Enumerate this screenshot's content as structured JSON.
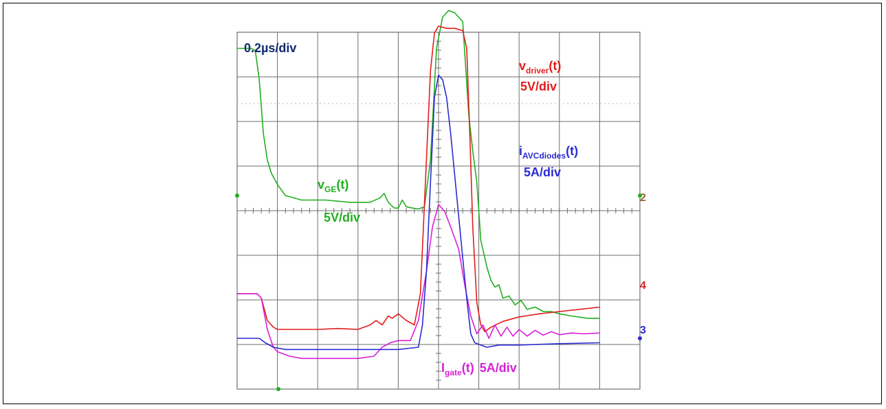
{
  "chart_data": {
    "type": "line",
    "grid": true,
    "x_divisions": 10,
    "y_divisions": 8,
    "timebase_label": "0.2µs/div",
    "colors": {
      "green": "#1faf1f",
      "red": "#e41b1b",
      "blue": "#2a2ad4",
      "magenta": "#d81ed8",
      "navy": "#102a6e",
      "grid": "#6e6e6e"
    },
    "channel_markers": {
      "ch2": "2",
      "ch4": "4",
      "ch3": "3"
    },
    "annotations": {
      "vdriver": {
        "main": "v",
        "sub": "driver",
        "tail": "(t)",
        "scale": "5V/div"
      },
      "iavc": {
        "main": "i",
        "sub": "AVCdiodes",
        "tail": "(t)",
        "scale": "5A/div"
      },
      "vge": {
        "main": "v",
        "sub": "GE",
        "tail": "(t)",
        "scale": "5V/div"
      },
      "igate": {
        "main": "I",
        "sub": "gate",
        "tail": "(t)",
        "scale": "5A/div"
      }
    },
    "series": [
      {
        "key": "vge",
        "color": "green",
        "points": [
          [
            0,
            6.5
          ],
          [
            0.35,
            6.5
          ],
          [
            0.45,
            6.45
          ],
          [
            0.55,
            5.8
          ],
          [
            0.65,
            4.6
          ],
          [
            0.75,
            4.0
          ],
          [
            0.85,
            3.7
          ],
          [
            1.0,
            3.45
          ],
          [
            1.2,
            3.2
          ],
          [
            1.6,
            3.1
          ],
          [
            2.2,
            3.1
          ],
          [
            2.8,
            3.05
          ],
          [
            3.3,
            3.05
          ],
          [
            3.55,
            3.15
          ],
          [
            3.65,
            3.25
          ],
          [
            3.75,
            3.05
          ],
          [
            3.9,
            2.92
          ],
          [
            4.0,
            2.92
          ],
          [
            4.1,
            3.1
          ],
          [
            4.2,
            2.95
          ],
          [
            4.35,
            2.92
          ],
          [
            4.5,
            2.9
          ],
          [
            4.65,
            2.95
          ],
          [
            4.8,
            4.0
          ],
          [
            4.95,
            6.5
          ],
          [
            5.1,
            7.2
          ],
          [
            5.25,
            7.35
          ],
          [
            5.4,
            7.3
          ],
          [
            5.6,
            7.1
          ],
          [
            5.75,
            5.0
          ],
          [
            5.85,
            4.2
          ],
          [
            5.95,
            3.5
          ],
          [
            6.05,
            2.2
          ],
          [
            6.2,
            1.6
          ],
          [
            6.3,
            1.3
          ],
          [
            6.4,
            1.15
          ],
          [
            6.5,
            1.2
          ],
          [
            6.6,
            0.9
          ],
          [
            6.75,
            0.95
          ],
          [
            6.9,
            0.75
          ],
          [
            7.05,
            0.85
          ],
          [
            7.2,
            0.65
          ],
          [
            7.4,
            0.7
          ],
          [
            7.6,
            0.6
          ],
          [
            7.8,
            0.6
          ],
          [
            8.0,
            0.55
          ],
          [
            8.3,
            0.5
          ],
          [
            8.7,
            0.45
          ],
          [
            9.0,
            0.45
          ]
        ]
      },
      {
        "key": "vdriver",
        "color": "red",
        "points": [
          [
            0,
            1.0
          ],
          [
            0.5,
            1.0
          ],
          [
            0.6,
            0.9
          ],
          [
            0.75,
            0.4
          ],
          [
            0.9,
            0.25
          ],
          [
            1.0,
            0.2
          ],
          [
            1.5,
            0.2
          ],
          [
            2.0,
            0.2
          ],
          [
            2.5,
            0.22
          ],
          [
            3.0,
            0.2
          ],
          [
            3.3,
            0.3
          ],
          [
            3.45,
            0.4
          ],
          [
            3.6,
            0.3
          ],
          [
            3.75,
            0.5
          ],
          [
            3.85,
            0.45
          ],
          [
            4.0,
            0.55
          ],
          [
            4.2,
            0.4
          ],
          [
            4.4,
            0.3
          ],
          [
            4.55,
            1.0
          ],
          [
            4.7,
            4.0
          ],
          [
            4.8,
            6.0
          ],
          [
            4.9,
            6.85
          ],
          [
            5.0,
            7.0
          ],
          [
            5.2,
            6.95
          ],
          [
            5.4,
            6.95
          ],
          [
            5.6,
            6.9
          ],
          [
            5.7,
            6.5
          ],
          [
            5.78,
            4.5
          ],
          [
            5.85,
            2.5
          ],
          [
            5.95,
            0.8
          ],
          [
            6.05,
            0.3
          ],
          [
            6.15,
            0.15
          ],
          [
            6.3,
            0.25
          ],
          [
            6.6,
            0.38
          ],
          [
            7.0,
            0.48
          ],
          [
            7.5,
            0.55
          ],
          [
            8.0,
            0.6
          ],
          [
            8.5,
            0.65
          ],
          [
            9.0,
            0.7
          ]
        ]
      },
      {
        "key": "igate",
        "color": "magenta",
        "points": [
          [
            0,
            1.0
          ],
          [
            0.5,
            1.0
          ],
          [
            0.6,
            0.9
          ],
          [
            0.75,
            0.2
          ],
          [
            0.9,
            -0.2
          ],
          [
            1.0,
            -0.3
          ],
          [
            1.3,
            -0.4
          ],
          [
            1.6,
            -0.45
          ],
          [
            2.0,
            -0.45
          ],
          [
            2.5,
            -0.45
          ],
          [
            3.0,
            -0.45
          ],
          [
            3.4,
            -0.4
          ],
          [
            3.6,
            -0.2
          ],
          [
            3.8,
            -0.1
          ],
          [
            4.0,
            -0.05
          ],
          [
            4.3,
            -0.05
          ],
          [
            4.5,
            0.4
          ],
          [
            4.7,
            1.5
          ],
          [
            4.85,
            2.5
          ],
          [
            5.0,
            3.0
          ],
          [
            5.15,
            2.85
          ],
          [
            5.3,
            2.5
          ],
          [
            5.5,
            2.0
          ],
          [
            5.65,
            1.2
          ],
          [
            5.8,
            0.5
          ],
          [
            5.95,
            0.1
          ],
          [
            6.1,
            0.3
          ],
          [
            6.25,
            0.0
          ],
          [
            6.4,
            0.3
          ],
          [
            6.55,
            0.05
          ],
          [
            6.7,
            0.25
          ],
          [
            6.85,
            0.05
          ],
          [
            7.0,
            0.2
          ],
          [
            7.2,
            0.05
          ],
          [
            7.4,
            0.18
          ],
          [
            7.6,
            0.07
          ],
          [
            7.8,
            0.15
          ],
          [
            8.0,
            0.08
          ],
          [
            8.3,
            0.12
          ],
          [
            8.6,
            0.1
          ],
          [
            9.0,
            0.12
          ]
        ]
      },
      {
        "key": "iavc",
        "color": "blue",
        "points": [
          [
            0,
            0.0
          ],
          [
            0.55,
            0.0
          ],
          [
            0.7,
            -0.1
          ],
          [
            0.9,
            -0.2
          ],
          [
            1.2,
            -0.25
          ],
          [
            1.8,
            -0.25
          ],
          [
            2.5,
            -0.25
          ],
          [
            3.2,
            -0.25
          ],
          [
            4.0,
            -0.25
          ],
          [
            4.5,
            -0.2
          ],
          [
            4.6,
            0.3
          ],
          [
            4.7,
            1.5
          ],
          [
            4.8,
            3.5
          ],
          [
            4.9,
            5.4
          ],
          [
            5.0,
            5.9
          ],
          [
            5.1,
            5.8
          ],
          [
            5.2,
            5.4
          ],
          [
            5.3,
            4.6
          ],
          [
            5.45,
            3.2
          ],
          [
            5.6,
            1.8
          ],
          [
            5.7,
            0.9
          ],
          [
            5.8,
            0.1
          ],
          [
            5.9,
            -0.1
          ],
          [
            6.2,
            -0.2
          ],
          [
            6.5,
            -0.15
          ],
          [
            7.0,
            -0.15
          ],
          [
            8.0,
            -0.12
          ],
          [
            9.0,
            -0.1
          ]
        ]
      }
    ]
  }
}
